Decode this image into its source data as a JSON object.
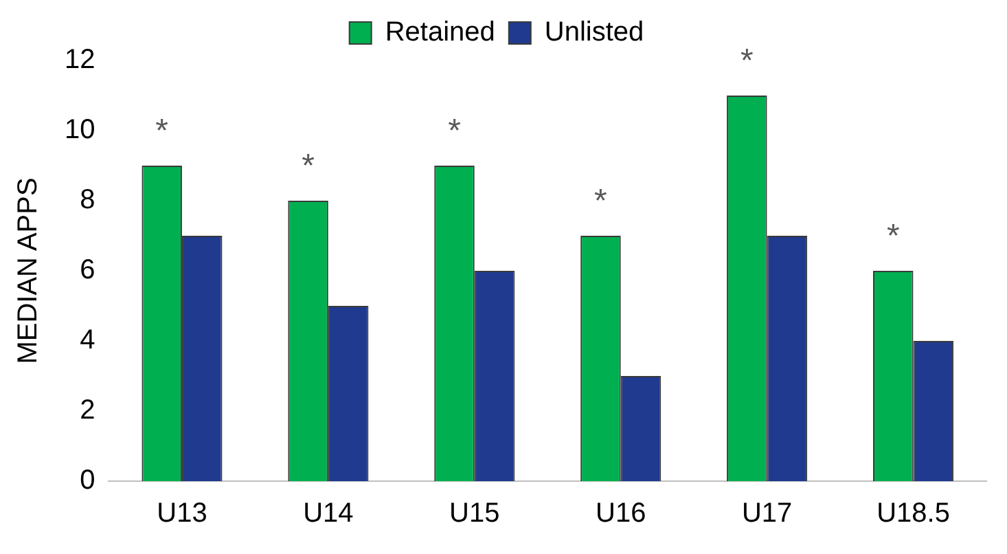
{
  "chart_data": {
    "type": "bar",
    "ylabel": "MEDIAN APPS",
    "categories": [
      "U13",
      "U14",
      "U15",
      "U16",
      "U17",
      "U18.5"
    ],
    "series": [
      {
        "name": "Retained",
        "color": "#00b050",
        "values": [
          9,
          8,
          9,
          7,
          11,
          6
        ]
      },
      {
        "name": "Unlisted",
        "color": "#1f3a8f",
        "values": [
          7,
          5,
          6,
          3,
          7,
          4
        ]
      }
    ],
    "ylim": [
      0,
      12
    ],
    "yticks": [
      0,
      2,
      4,
      6,
      8,
      10,
      12
    ],
    "grid": false,
    "legend": "top",
    "annotations": [
      {
        "text": "*",
        "x": "U13",
        "y": 9
      },
      {
        "text": "*",
        "x": "U14",
        "y": 8
      },
      {
        "text": "*",
        "x": "U15",
        "y": 9
      },
      {
        "text": "*",
        "x": "U16",
        "y": 7
      },
      {
        "text": "*",
        "x": "U17",
        "y": 11
      },
      {
        "text": "*",
        "x": "U18.5",
        "y": 6
      }
    ]
  }
}
